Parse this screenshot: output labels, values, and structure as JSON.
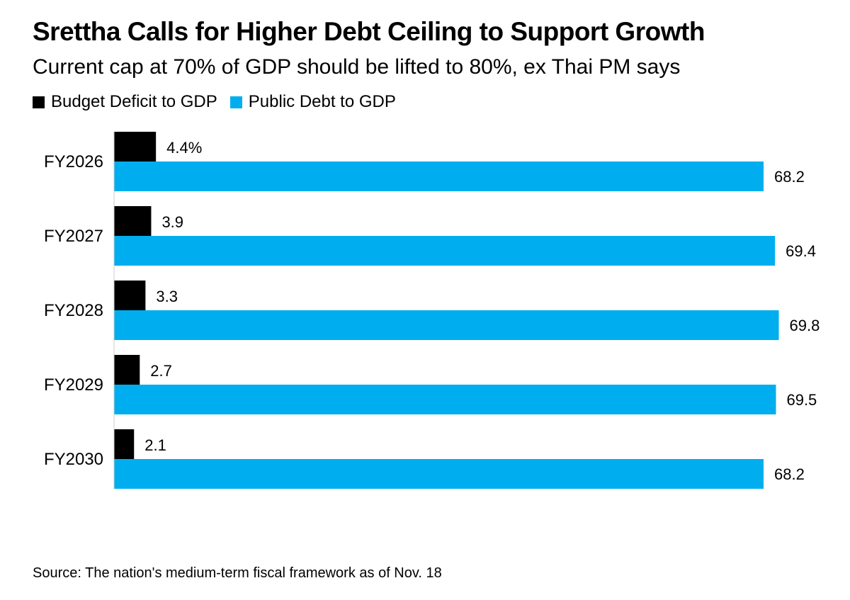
{
  "chart_data": {
    "type": "bar",
    "orientation": "horizontal",
    "title": "Srettha Calls for Higher Debt Ceiling to Support Growth",
    "subtitle": "Current cap at 70% of GDP should be lifted to 80%, ex Thai PM says",
    "categories": [
      "FY2026",
      "FY2027",
      "FY2028",
      "FY2029",
      "FY2030"
    ],
    "series": [
      {
        "name": "Budget Deficit to GDP",
        "color": "#000000",
        "values": [
          4.4,
          3.9,
          3.3,
          2.7,
          2.1
        ],
        "labels": [
          "4.4%",
          "3.9",
          "3.3",
          "2.7",
          "2.1"
        ]
      },
      {
        "name": "Public Debt to GDP",
        "color": "#00aeef",
        "values": [
          68.2,
          69.4,
          69.8,
          69.5,
          68.2
        ],
        "labels": [
          "68.2",
          "69.4",
          "69.8",
          "69.5",
          "68.2"
        ]
      }
    ],
    "xlim": [
      0,
      70
    ],
    "grid": false,
    "legend_position": "top-left",
    "source": "Source: The nation's medium-term fiscal framework as of Nov. 18"
  }
}
